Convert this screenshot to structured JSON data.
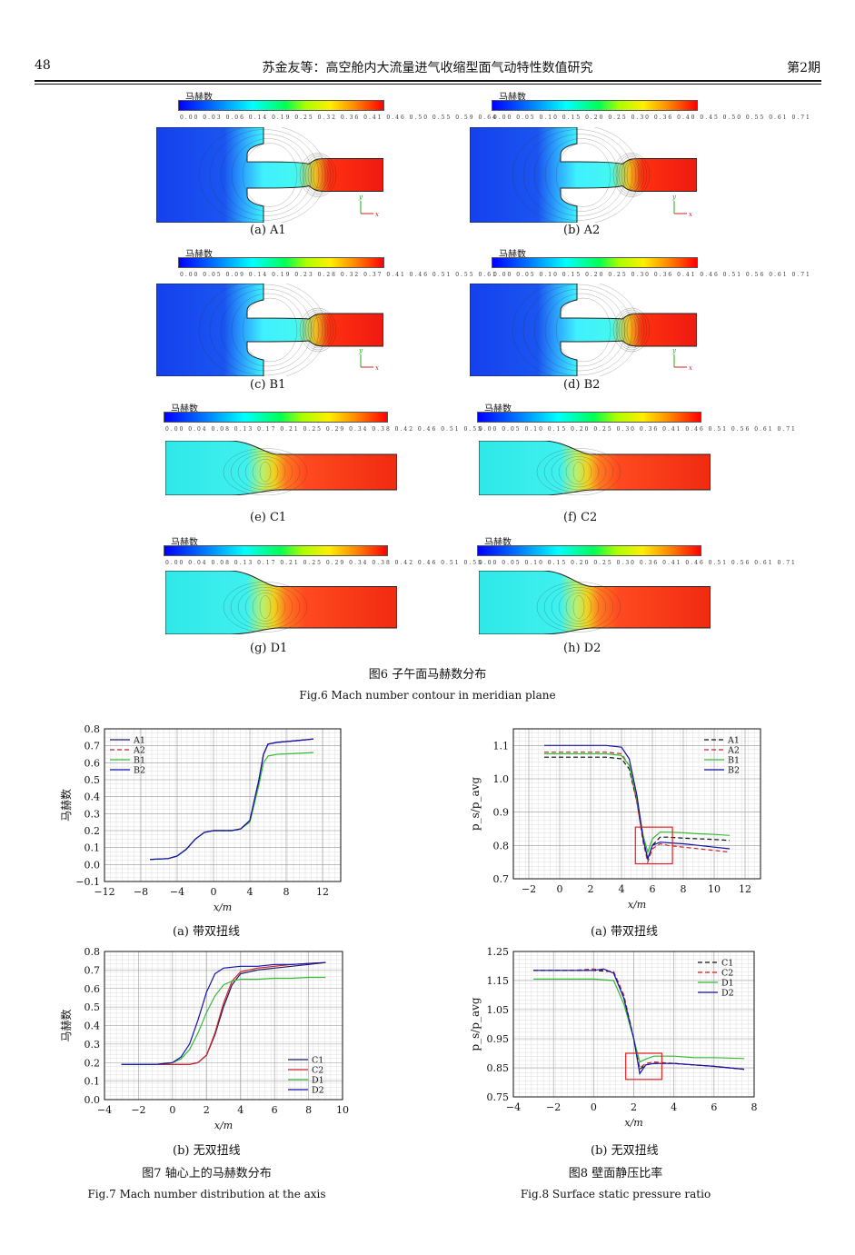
{
  "header": {
    "page_number": "48",
    "title": "苏金友等：高空舱内大流量进气收缩型面气动特性数值研究",
    "issue": "第2期"
  },
  "fig6": {
    "colorbar_label": "马赫数",
    "panels": [
      {
        "label": "(a)  A1",
        "ticks": "0.00 0.03 0.06 0.14 0.19 0.25 0.32 0.36 0.41 0.46 0.50 0.55 0.59 0.64"
      },
      {
        "label": "(b)  A2",
        "ticks": "0.00 0.05 0.10 0.15 0.20 0.25 0.30 0.36 0.40 0.45 0.50 0.55 0.61 0.71"
      },
      {
        "label": "(c)  B1",
        "ticks": "0.00 0.05 0.09 0.14 0.19 0.23 0.28 0.32 0.37 0.41 0.46 0.51 0.55 0.61"
      },
      {
        "label": "(d)  B2",
        "ticks": "0.00 0.05 0.10 0.15 0.20 0.25 0.30 0.36 0.41 0.46 0.51 0.56 0.61 0.71"
      },
      {
        "label": "(e)  C1",
        "ticks": "0.00 0.04 0.08 0.13 0.17 0.21 0.25 0.29 0.34 0.38 0.42 0.46 0.51 0.55"
      },
      {
        "label": "(f)  C2",
        "ticks": "0.00 0.05 0.10 0.15 0.20 0.25 0.30 0.36 0.41 0.46 0.51 0.56 0.61 0.71"
      },
      {
        "label": "(g)  D1",
        "ticks": "0.00 0.04 0.08 0.13 0.17 0.21 0.25 0.29 0.34 0.38 0.42 0.46 0.51 0.55"
      },
      {
        "label": "(h)  D2",
        "ticks": "0.00 0.05 0.10 0.15 0.20 0.25 0.30 0.36 0.41 0.46 0.51 0.56 0.61 0.71"
      }
    ],
    "caption_cn": "图6  子午面马赫数分布",
    "caption_en": "Fig.6  Mach number contour in meridian plane"
  },
  "fig7": {
    "sub_a": "(a)  带双扭线",
    "sub_b": "(b)  无双扭线",
    "caption_cn": "图7  轴心上的马赫数分布",
    "caption_en": "Fig.7  Mach number distribution at the axis"
  },
  "fig8": {
    "sub_a": "(a)  带双扭线",
    "sub_b": "(b)  无双扭线",
    "caption_cn": "图8  壁面静压比率",
    "caption_en": "Fig.8  Surface static pressure ratio"
  },
  "chart_data": [
    {
      "type": "line",
      "id": "7a",
      "xlabel": "x/m",
      "ylabel": "马赫数",
      "xlim": [
        -12,
        14
      ],
      "ylim": [
        -0.1,
        0.8
      ],
      "xticks": [
        -12,
        -8,
        -4,
        0,
        4,
        8,
        12
      ],
      "yticks": [
        -0.1,
        0.0,
        0.1,
        0.2,
        0.3,
        0.4,
        0.5,
        0.6,
        0.7,
        0.8
      ],
      "legend": "top-left",
      "series": [
        {
          "name": "A1",
          "color": "#1a1a66",
          "dash": "",
          "x": [
            -7,
            -5,
            -4,
            -3,
            -2,
            -1,
            0,
            1,
            2,
            3,
            4,
            5,
            5.5,
            6,
            7,
            9,
            11
          ],
          "y": [
            0.03,
            0.035,
            0.05,
            0.09,
            0.15,
            0.19,
            0.2,
            0.2,
            0.2,
            0.21,
            0.26,
            0.5,
            0.65,
            0.71,
            0.72,
            0.73,
            0.74
          ]
        },
        {
          "name": "A2",
          "color": "#cc2222",
          "dash": "5,3",
          "x": [
            -7,
            -5,
            -4,
            -3,
            -2,
            -1,
            0,
            1,
            2,
            3,
            4,
            5,
            5.5,
            6,
            7,
            9,
            11
          ],
          "y": [
            0.03,
            0.035,
            0.05,
            0.09,
            0.15,
            0.19,
            0.2,
            0.2,
            0.2,
            0.21,
            0.26,
            0.5,
            0.65,
            0.71,
            0.72,
            0.73,
            0.74
          ]
        },
        {
          "name": "B1",
          "color": "#33bb33",
          "dash": "",
          "x": [
            -7,
            -5,
            -4,
            -3,
            -2,
            -1,
            0,
            1,
            2,
            3,
            4,
            5,
            5.5,
            6,
            7,
            9,
            11
          ],
          "y": [
            0.03,
            0.035,
            0.05,
            0.09,
            0.15,
            0.19,
            0.2,
            0.2,
            0.2,
            0.21,
            0.25,
            0.47,
            0.6,
            0.64,
            0.65,
            0.655,
            0.66
          ]
        },
        {
          "name": "B2",
          "color": "#1111aa",
          "dash": "",
          "x": [
            -7,
            -5,
            -4,
            -3,
            -2,
            -1,
            0,
            1,
            2,
            3,
            4,
            5,
            5.5,
            6,
            7,
            9,
            11
          ],
          "y": [
            0.03,
            0.035,
            0.05,
            0.09,
            0.15,
            0.19,
            0.2,
            0.2,
            0.2,
            0.21,
            0.26,
            0.5,
            0.65,
            0.71,
            0.72,
            0.73,
            0.74
          ]
        }
      ]
    },
    {
      "type": "line",
      "id": "7b",
      "xlabel": "x/m",
      "ylabel": "马赫数",
      "xlim": [
        -4,
        10
      ],
      "ylim": [
        0.0,
        0.8
      ],
      "xticks": [
        -4,
        -2,
        0,
        2,
        4,
        6,
        8,
        10
      ],
      "yticks": [
        0.0,
        0.1,
        0.2,
        0.3,
        0.4,
        0.5,
        0.6,
        0.7,
        0.8
      ],
      "legend": "bottom-right",
      "series": [
        {
          "name": "C1",
          "color": "#1a1a66",
          "dash": "",
          "x": [
            -3,
            -1,
            0,
            1,
            1.5,
            2,
            2.5,
            3,
            3.5,
            4,
            5,
            6,
            7,
            8,
            9
          ],
          "y": [
            0.19,
            0.19,
            0.19,
            0.19,
            0.2,
            0.24,
            0.35,
            0.5,
            0.62,
            0.68,
            0.7,
            0.71,
            0.72,
            0.73,
            0.74
          ]
        },
        {
          "name": "C2",
          "color": "#cc2222",
          "dash": "",
          "x": [
            -3,
            -1,
            0,
            1,
            1.5,
            2,
            2.5,
            3,
            3.5,
            4,
            5,
            6,
            7,
            8,
            9
          ],
          "y": [
            0.19,
            0.19,
            0.19,
            0.19,
            0.2,
            0.24,
            0.36,
            0.52,
            0.64,
            0.69,
            0.71,
            0.72,
            0.73,
            0.735,
            0.74
          ]
        },
        {
          "name": "D1",
          "color": "#33bb33",
          "dash": "",
          "x": [
            -3,
            -1,
            0,
            0.5,
            1,
            1.5,
            2,
            2.5,
            3,
            3.5,
            4,
            5,
            6,
            7,
            8,
            9
          ],
          "y": [
            0.19,
            0.19,
            0.2,
            0.22,
            0.27,
            0.36,
            0.47,
            0.56,
            0.62,
            0.64,
            0.65,
            0.65,
            0.655,
            0.655,
            0.66,
            0.66
          ]
        },
        {
          "name": "D2",
          "color": "#1111aa",
          "dash": "",
          "x": [
            -3,
            -1,
            0,
            0.5,
            1,
            1.5,
            2,
            2.5,
            3,
            4,
            5,
            6,
            7,
            8,
            9
          ],
          "y": [
            0.19,
            0.19,
            0.2,
            0.23,
            0.3,
            0.43,
            0.58,
            0.68,
            0.71,
            0.72,
            0.72,
            0.73,
            0.73,
            0.735,
            0.74
          ]
        }
      ]
    },
    {
      "type": "line",
      "id": "8a",
      "xlabel": "x/m",
      "ylabel": "p_s/p_avg",
      "xlim": [
        -3,
        13
      ],
      "ylim": [
        0.7,
        1.15
      ],
      "xticks": [
        -2,
        0,
        2,
        4,
        6,
        8,
        10,
        12
      ],
      "yticks": [
        0.7,
        0.8,
        0.9,
        1.0,
        1.1
      ],
      "legend": "top-right",
      "series": [
        {
          "name": "A1",
          "color": "#111111",
          "dash": "5,3",
          "x": [
            -1,
            0,
            1,
            2,
            3,
            4,
            4.5,
            5,
            5.4,
            5.7,
            6,
            6.5,
            7,
            8,
            9,
            10,
            11
          ],
          "y": [
            1.065,
            1.065,
            1.065,
            1.065,
            1.065,
            1.06,
            1.03,
            0.93,
            0.82,
            0.76,
            0.8,
            0.825,
            0.825,
            0.822,
            0.82,
            0.818,
            0.815
          ]
        },
        {
          "name": "A2",
          "color": "#cc2222",
          "dash": "5,3",
          "x": [
            -1,
            0,
            1,
            2,
            3,
            4,
            4.5,
            5,
            5.4,
            5.7,
            6,
            6.5,
            7,
            8,
            9,
            10,
            11
          ],
          "y": [
            1.08,
            1.08,
            1.08,
            1.08,
            1.08,
            1.075,
            1.04,
            0.93,
            0.81,
            0.75,
            0.79,
            0.805,
            0.8,
            0.795,
            0.79,
            0.785,
            0.78
          ]
        },
        {
          "name": "B1",
          "color": "#33bb33",
          "dash": "",
          "x": [
            -1,
            0,
            1,
            2,
            3,
            4,
            4.5,
            5,
            5.4,
            5.7,
            6,
            6.5,
            7,
            8,
            9,
            10,
            11
          ],
          "y": [
            1.075,
            1.075,
            1.075,
            1.075,
            1.075,
            1.07,
            1.04,
            0.94,
            0.83,
            0.78,
            0.82,
            0.84,
            0.84,
            0.838,
            0.835,
            0.833,
            0.83
          ]
        },
        {
          "name": "B2",
          "color": "#1111aa",
          "dash": "",
          "x": [
            -1,
            0,
            1,
            2,
            3,
            4,
            4.5,
            5,
            5.4,
            5.7,
            6,
            6.5,
            7,
            8,
            9,
            10,
            11
          ],
          "y": [
            1.1,
            1.1,
            1.1,
            1.1,
            1.1,
            1.095,
            1.06,
            0.95,
            0.82,
            0.76,
            0.8,
            0.81,
            0.808,
            0.805,
            0.8,
            0.795,
            0.79
          ]
        }
      ]
    },
    {
      "type": "line",
      "id": "8b",
      "xlabel": "x/m",
      "ylabel": "p_s/p_avg",
      "xlim": [
        -4,
        8
      ],
      "ylim": [
        0.75,
        1.25
      ],
      "xticks": [
        -4,
        -2,
        0,
        2,
        4,
        6,
        8
      ],
      "yticks": [
        0.75,
        0.85,
        0.95,
        1.05,
        1.15,
        1.25
      ],
      "legend": "top-right",
      "series": [
        {
          "name": "C1",
          "color": "#111111",
          "dash": "5,3",
          "x": [
            -3,
            -1,
            0,
            1,
            1.5,
            2,
            2.3,
            2.6,
            3,
            4,
            5,
            6,
            7.5
          ],
          "y": [
            1.185,
            1.185,
            1.185,
            1.18,
            1.1,
            0.95,
            0.845,
            0.86,
            0.865,
            0.865,
            0.86,
            0.855,
            0.845
          ]
        },
        {
          "name": "C2",
          "color": "#cc2222",
          "dash": "5,3",
          "x": [
            -3,
            -1,
            0,
            1,
            1.5,
            2,
            2.3,
            2.6,
            3,
            4,
            5,
            6,
            7.5
          ],
          "y": [
            1.185,
            1.185,
            1.19,
            1.18,
            1.1,
            0.95,
            0.85,
            0.865,
            0.87,
            0.865,
            0.86,
            0.855,
            0.845
          ]
        },
        {
          "name": "D1",
          "color": "#33bb33",
          "dash": "",
          "x": [
            -3,
            -1,
            0,
            1,
            1.5,
            2,
            2.3,
            2.6,
            3,
            4,
            5,
            6,
            7.5
          ],
          "y": [
            1.155,
            1.155,
            1.155,
            1.15,
            1.07,
            0.95,
            0.87,
            0.88,
            0.89,
            0.89,
            0.885,
            0.885,
            0.882
          ]
        },
        {
          "name": "D2",
          "color": "#1111aa",
          "dash": "",
          "x": [
            -3,
            -1,
            0,
            0.5,
            1,
            1.5,
            2,
            2.3,
            2.6,
            3,
            4,
            5,
            6,
            7.5
          ],
          "y": [
            1.185,
            1.185,
            1.185,
            1.19,
            1.175,
            1.09,
            0.95,
            0.83,
            0.86,
            0.865,
            0.865,
            0.86,
            0.855,
            0.845
          ]
        }
      ]
    }
  ]
}
